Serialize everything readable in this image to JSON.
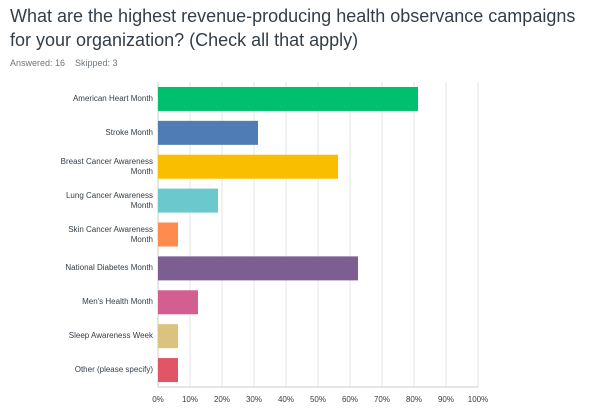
{
  "chart_data": {
    "type": "bar",
    "orientation": "horizontal",
    "title": "What are the highest revenue-producing health observance campaigns for your organization? (Check all that apply)",
    "answered": "Answered: 16",
    "skipped": "Skipped: 3",
    "categories": [
      "American Heart Month",
      "Stroke Month",
      "Breast Cancer Awareness Month",
      "Lung Cancer Awareness Month",
      "Skin Cancer Awareness Month",
      "National Diabetes Month",
      "Men's Health Month",
      "Sleep Awareness Week",
      "Other (please specify)"
    ],
    "values": [
      81.25,
      31.25,
      56.25,
      18.75,
      6.25,
      62.5,
      12.5,
      6.25,
      6.25
    ],
    "colors": [
      "#00bf6f",
      "#507cb6",
      "#f9be00",
      "#6bc8cd",
      "#ff8b4f",
      "#7d5e90",
      "#d25f90",
      "#dbc27f",
      "#e05666"
    ],
    "xlim": [
      0,
      100
    ],
    "xticks": [
      {
        "value": 0,
        "label": "0%"
      },
      {
        "value": 10,
        "label": "10%"
      },
      {
        "value": 20,
        "label": "20%"
      },
      {
        "value": 30,
        "label": "30%"
      },
      {
        "value": 40,
        "label": "40%"
      },
      {
        "value": 50,
        "label": "50%"
      },
      {
        "value": 60,
        "label": "60%"
      },
      {
        "value": 70,
        "label": "70%"
      },
      {
        "value": 80,
        "label": "80%"
      },
      {
        "value": 90,
        "label": "90%"
      },
      {
        "value": 100,
        "label": "100%"
      }
    ],
    "grid": true
  }
}
